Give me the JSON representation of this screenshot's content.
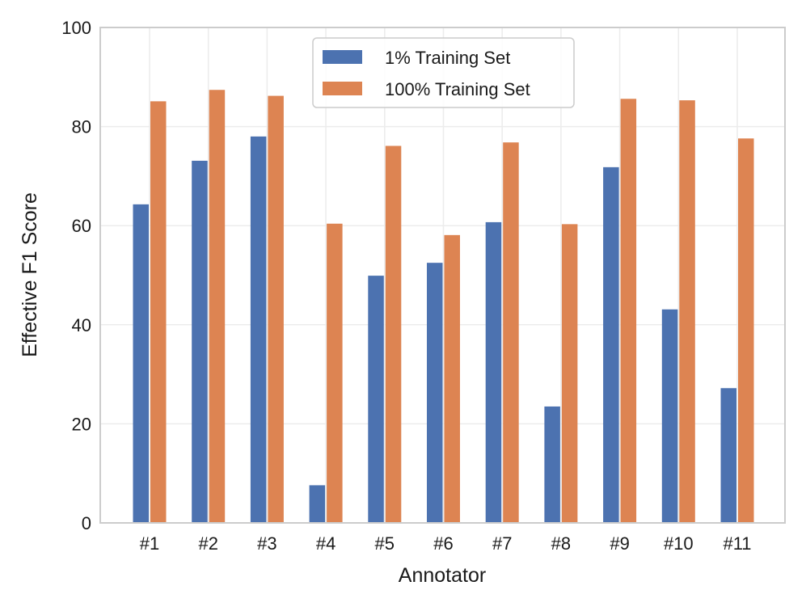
{
  "chart_data": {
    "type": "bar",
    "title": "",
    "xlabel": "Annotator",
    "ylabel": "Effective F1 Score",
    "ylim": [
      0,
      100
    ],
    "yticks": [
      0,
      20,
      40,
      60,
      80,
      100
    ],
    "grid": true,
    "legend_position": "top-center",
    "categories": [
      "#1",
      "#2",
      "#3",
      "#4",
      "#5",
      "#6",
      "#7",
      "#8",
      "#9",
      "#10",
      "#11"
    ],
    "series": [
      {
        "name": "1% Training Set",
        "color": "#4c72b0",
        "values": [
          64.3,
          73.1,
          78.0,
          7.6,
          49.9,
          52.5,
          60.7,
          23.5,
          71.8,
          43.1,
          27.2
        ]
      },
      {
        "name": "100% Training Set",
        "color": "#dd8452",
        "values": [
          85.1,
          87.4,
          86.2,
          60.4,
          76.1,
          58.1,
          76.8,
          60.3,
          85.6,
          85.3,
          77.6
        ]
      }
    ]
  }
}
